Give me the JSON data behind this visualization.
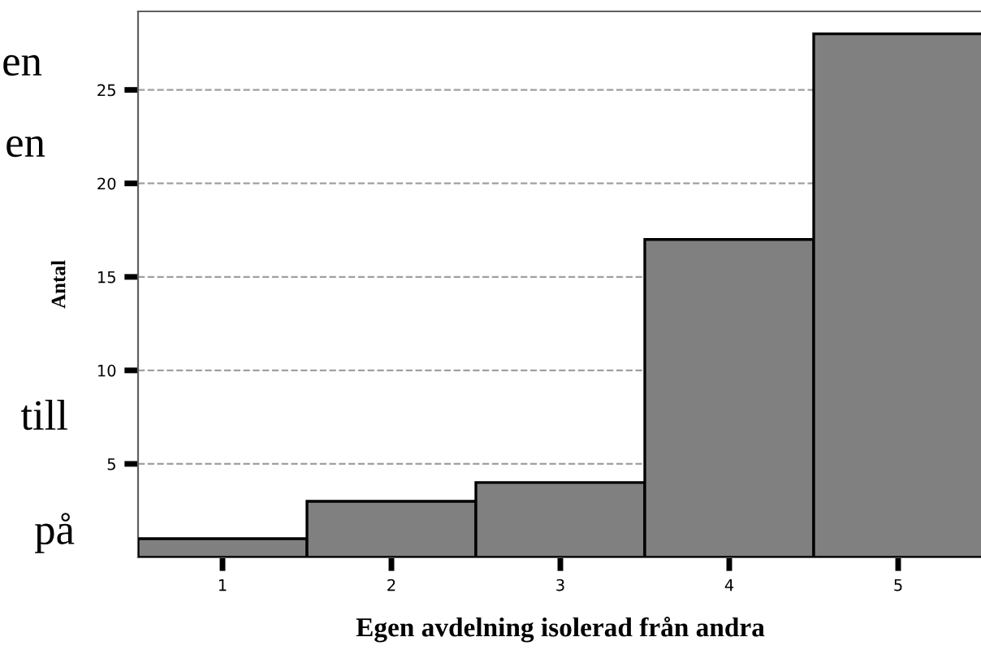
{
  "chart_data": {
    "type": "bar",
    "xlabel": "Egen avdelning isolerad från andra",
    "ylabel": "Antal",
    "categories": [
      "1",
      "2",
      "3",
      "4",
      "5"
    ],
    "values": [
      1,
      3,
      4,
      17,
      28
    ],
    "color": "#808080",
    "ylim": [
      0,
      29.2
    ],
    "yticks": [
      5,
      10,
      15,
      20,
      25
    ],
    "grid": "y",
    "annotations": [
      "en",
      "en",
      "till",
      "på"
    ]
  }
}
